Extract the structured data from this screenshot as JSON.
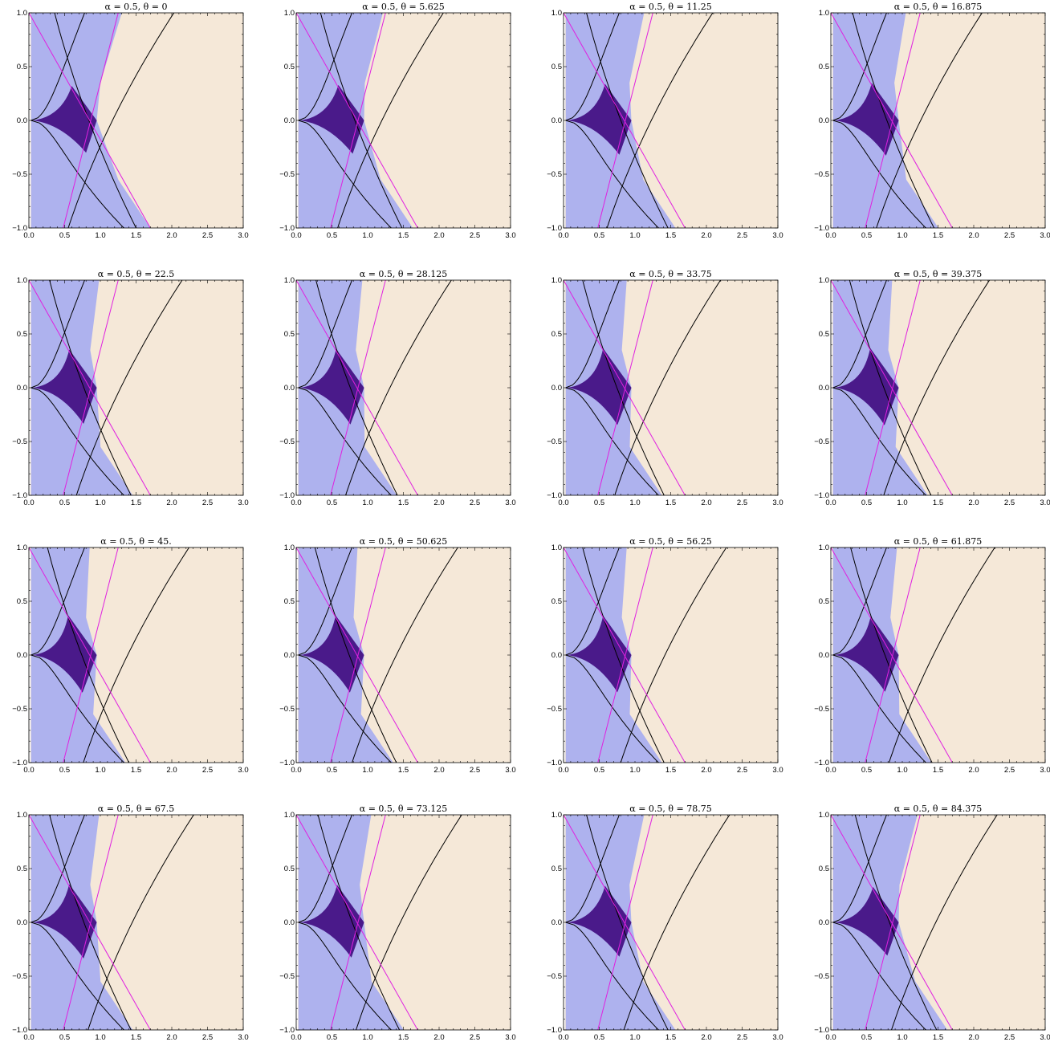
{
  "chart_data": {
    "type": "heatmap",
    "layout": "small-multiples grid, 4 rows x 4 columns",
    "alpha_label": "α = 0.5",
    "xlim": [
      0,
      3.0
    ],
    "ylim": [
      -1.0,
      1.0
    ],
    "x_ticks": [
      "0.0",
      "0.5",
      "1.0",
      "1.5",
      "2.0",
      "2.5",
      "3.0"
    ],
    "y_ticks": [
      "1.0",
      "0.5",
      "0.0",
      "−0.5",
      "−1.0"
    ],
    "x_tick_values": [
      0,
      0.5,
      1.0,
      1.5,
      2.0,
      2.5,
      3.0
    ],
    "y_tick_values": [
      1.0,
      0.5,
      0.0,
      -0.5,
      -1.0
    ],
    "grid": false,
    "colors": {
      "background_region": "#f5e8d8",
      "light_region": "#aeb2ee",
      "dark_region": "#4a1a8a",
      "black_curves": "#000000",
      "magenta_lines": "#e020e0"
    },
    "panels": [
      {
        "title": "α = 0.5, θ = 0",
        "theta": 0
      },
      {
        "title": "α = 0.5, θ = 5.625",
        "theta": 5.625
      },
      {
        "title": "α = 0.5, θ = 11.25",
        "theta": 11.25
      },
      {
        "title": "α = 0.5, θ = 16.875",
        "theta": 16.875
      },
      {
        "title": "α = 0.5, θ = 22.5",
        "theta": 22.5
      },
      {
        "title": "α = 0.5, θ = 28.125",
        "theta": 28.125
      },
      {
        "title": "α = 0.5, θ = 33.75",
        "theta": 33.75
      },
      {
        "title": "α = 0.5, θ = 39.375",
        "theta": 39.375
      },
      {
        "title": "α = 0.5, θ = 45.",
        "theta": 45
      },
      {
        "title": "α = 0.5, θ = 50.625",
        "theta": 50.625
      },
      {
        "title": "α = 0.5, θ = 56.25",
        "theta": 56.25
      },
      {
        "title": "α = 0.5, θ = 61.875",
        "theta": 61.875
      },
      {
        "title": "α = 0.5, θ = 67.5",
        "theta": 67.5
      },
      {
        "title": "α = 0.5, θ = 73.125",
        "theta": 73.125
      },
      {
        "title": "α = 0.5, θ = 78.75",
        "theta": 78.75
      },
      {
        "title": "α = 0.5, θ = 84.375",
        "theta": 84.375
      }
    ]
  }
}
